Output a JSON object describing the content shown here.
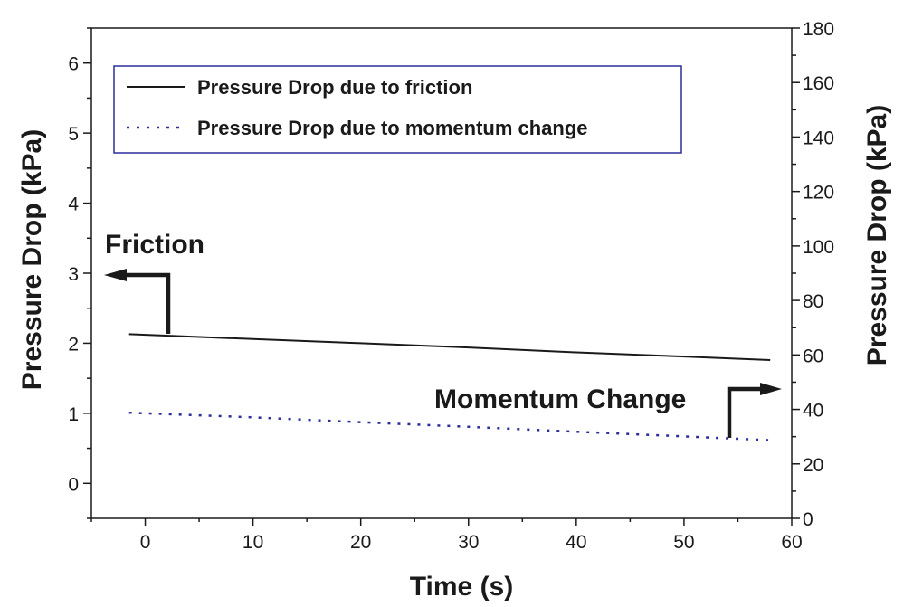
{
  "chart_data": {
    "type": "line",
    "title": "",
    "xlabel": "Time (s)",
    "ylabel_left": "Pressure Drop (kPa)",
    "ylabel_right": "Pressure Drop (kPa)",
    "xlim": [
      -5,
      60
    ],
    "ylim_left": [
      -0.5,
      6.5
    ],
    "ylim_right": [
      0,
      180
    ],
    "x_ticks": [
      0,
      10,
      20,
      30,
      40,
      50,
      60
    ],
    "y_left_ticks": [
      0,
      1,
      2,
      3,
      4,
      5,
      6
    ],
    "y_right_ticks": [
      0,
      20,
      40,
      60,
      80,
      100,
      120,
      140,
      160,
      180
    ],
    "grid": false,
    "legend_position": "top-left",
    "series": [
      {
        "name": "Pressure Drop due to friction",
        "axis": "left",
        "style": "solid",
        "color": "#1a1a1a",
        "x": [
          -1.5,
          10,
          20,
          30,
          40,
          50,
          58
        ],
        "y": [
          2.13,
          2.06,
          2.0,
          1.94,
          1.87,
          1.81,
          1.76
        ]
      },
      {
        "name": "Pressure Drop due to momentum change",
        "axis": "right",
        "style": "dotted",
        "color": "#2b2f9c",
        "x": [
          -1.5,
          10,
          20,
          30,
          40,
          50,
          58
        ],
        "y": [
          38.8,
          37.1,
          35.3,
          33.6,
          31.8,
          30.1,
          28.7
        ]
      }
    ],
    "annotations": [
      {
        "text": "Friction",
        "points_to": "left-axis"
      },
      {
        "text": "Momentum Change",
        "points_to": "right-axis"
      }
    ]
  }
}
